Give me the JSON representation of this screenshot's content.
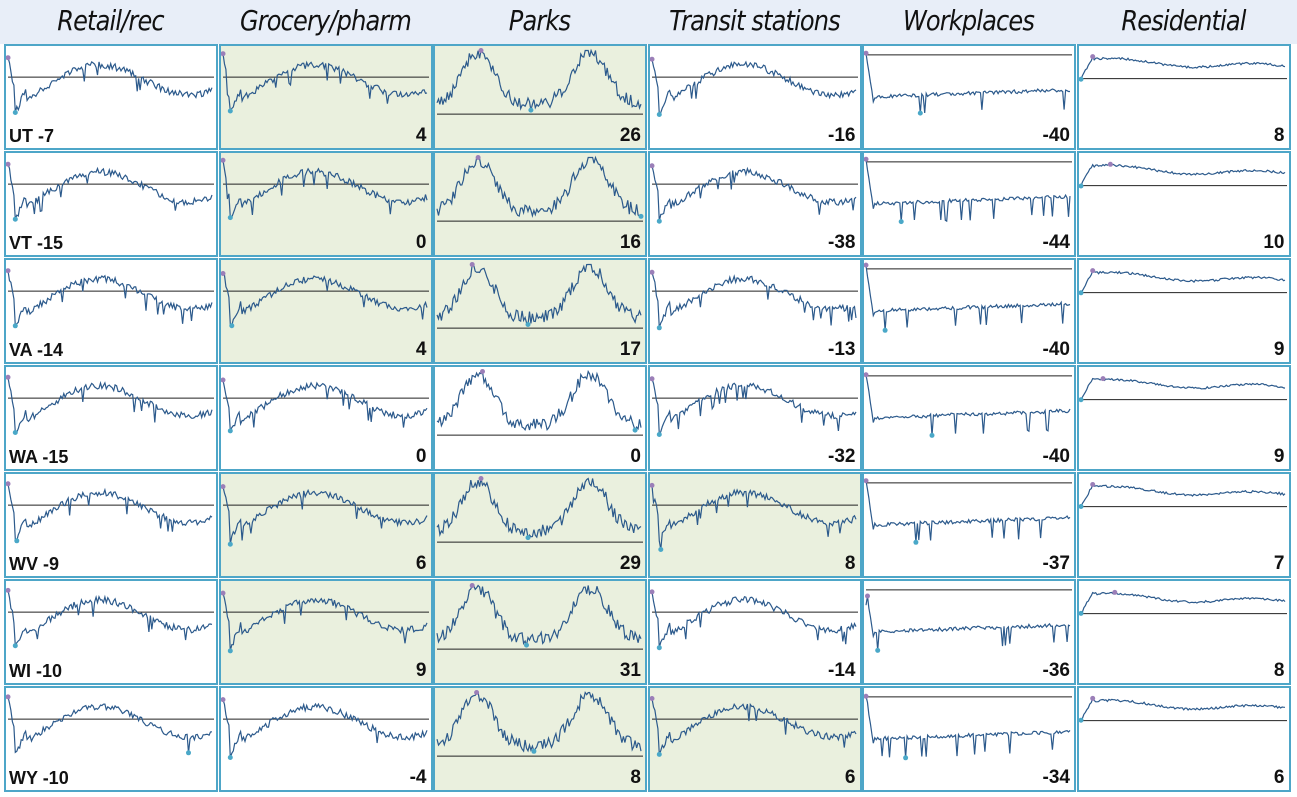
{
  "chart_data": {
    "type": "line",
    "columns": [
      "Retail/rec",
      "Grocery/pharm",
      "Parks",
      "Transit stations",
      "Workplaces",
      "Residential"
    ],
    "rows": [
      {
        "state": "UT",
        "values": [
          -7,
          4,
          26,
          -16,
          -40,
          8
        ],
        "highlight": [
          false,
          true,
          true,
          false,
          false,
          false
        ]
      },
      {
        "state": "VT",
        "values": [
          -15,
          0,
          16,
          -38,
          -44,
          10
        ],
        "highlight": [
          false,
          true,
          true,
          false,
          false,
          false
        ]
      },
      {
        "state": "VA",
        "values": [
          -14,
          4,
          17,
          -13,
          -40,
          9
        ],
        "highlight": [
          false,
          true,
          true,
          false,
          false,
          false
        ]
      },
      {
        "state": "WA",
        "values": [
          -15,
          0,
          0,
          -32,
          -40,
          9
        ],
        "highlight": [
          false,
          false,
          false,
          false,
          false,
          false
        ]
      },
      {
        "state": "WV",
        "values": [
          -9,
          6,
          29,
          8,
          -37,
          7
        ],
        "highlight": [
          false,
          true,
          true,
          true,
          false,
          false
        ]
      },
      {
        "state": "WI",
        "values": [
          -10,
          9,
          31,
          -14,
          -36,
          8
        ],
        "highlight": [
          false,
          true,
          true,
          false,
          false,
          false
        ]
      },
      {
        "state": "WY",
        "values": [
          -10,
          -4,
          8,
          6,
          -34,
          6
        ],
        "highlight": [
          false,
          false,
          true,
          true,
          false,
          false
        ]
      }
    ]
  },
  "colors": {
    "line": "#2c5a8c",
    "baseline": "#222222",
    "border": "#4ea6c8",
    "highlight": "#eaf0de",
    "marker_low": "#4aa8c8",
    "marker_high": "#9b7fb8"
  }
}
